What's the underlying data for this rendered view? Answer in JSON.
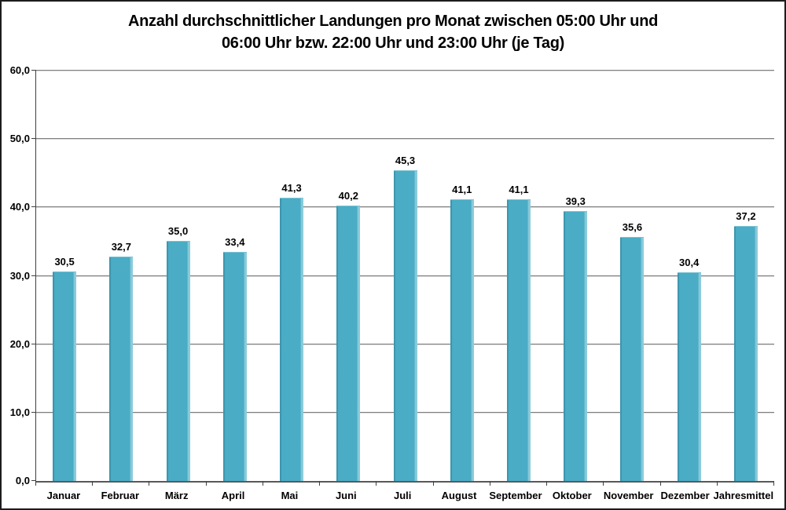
{
  "chart_data": {
    "type": "bar",
    "title": "Anzahl durchschnittlicher Landungen pro Monat zwischen 05:00 Uhr und 06:00 Uhr bzw. 22:00 Uhr und 23:00 Uhr (je Tag)",
    "title_lines": [
      "Anzahl durchschnittlicher Landungen pro Monat zwischen 05:00 Uhr und",
      "06:00 Uhr bzw. 22:00 Uhr und 23:00 Uhr (je Tag)"
    ],
    "categories": [
      "Januar",
      "Februar",
      "März",
      "April",
      "Mai",
      "Juni",
      "Juli",
      "August",
      "September",
      "Oktober",
      "November",
      "Dezember",
      "Jahresmittel"
    ],
    "values": [
      30.5,
      32.7,
      35.0,
      33.4,
      41.3,
      40.2,
      45.3,
      41.1,
      41.1,
      39.3,
      35.6,
      30.4,
      37.2
    ],
    "value_labels": [
      "30,5",
      "32,7",
      "35,0",
      "33,4",
      "41,3",
      "40,2",
      "45,3",
      "41,1",
      "41,1",
      "39,3",
      "35,6",
      "30,4",
      "37,2"
    ],
    "y_ticks": [
      "0,0",
      "10,0",
      "20,0",
      "30,0",
      "40,0",
      "50,0",
      "60,0"
    ],
    "ylim": [
      0,
      60
    ],
    "xlabel": "",
    "ylabel": "",
    "grid": true,
    "legend": "none"
  },
  "colors": {
    "bar_fill": "#4aacc5",
    "bar_edge_dark": "#3d94ac",
    "bar_edge_light": "#8bcbda",
    "gridline": "#7f7f7f",
    "axis": "#404040",
    "frame_border": "#1c1c1c",
    "background": "#ffffff",
    "text": "#000000"
  }
}
